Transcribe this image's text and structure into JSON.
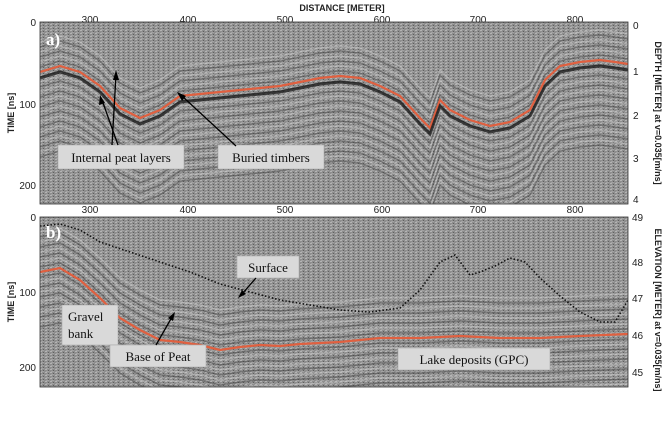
{
  "x_axis": {
    "title": "DISTANCE [METER]",
    "ticks": [
      "300",
      "400",
      "500",
      "600",
      "700",
      "800"
    ]
  },
  "panel_a": {
    "letter": "a)",
    "left_axis_title": "TIME [ns]",
    "left_ticks": [
      "0",
      "100",
      "200"
    ],
    "right_axis_title": "DEPTH [METER] at v=0.035[m/ns]",
    "right_ticks": [
      "0",
      "1",
      "2",
      "3",
      "4"
    ],
    "annotations": {
      "peat_layers": "Internal peat layers",
      "timbers": "Buried timbers"
    }
  },
  "panel_b": {
    "letter": "b)",
    "left_axis_title": "TIME [ns]",
    "left_ticks": [
      "0",
      "100",
      "200"
    ],
    "right_axis_title": "ELEVATION [METER] at v=0.035[m/ns]",
    "right_ticks": [
      "49",
      "48",
      "47",
      "46",
      "45"
    ],
    "annotations": {
      "surface": "Surface",
      "gravel_line1": "Gravel",
      "gravel_line2": "bank",
      "base_peat": "Base of Peat",
      "lake": "Lake deposits (GPC)"
    }
  },
  "colors": {
    "reflector": "#e06040",
    "radargram_bg": "#8f8f8f",
    "surface_line": "#111111"
  }
}
